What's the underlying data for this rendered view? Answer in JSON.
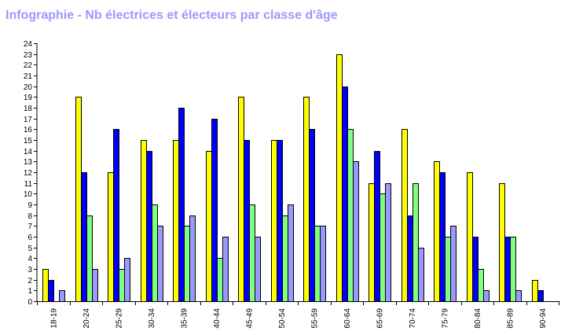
{
  "title": "Infographie - Nb électrices et électeurs par classe d'âge",
  "chart_data": {
    "type": "bar",
    "title": "Infographie - Nb électrices et électeurs par classe d'âge",
    "xlabel": "",
    "ylabel": "",
    "ylim": [
      0,
      24
    ],
    "yticks": [
      "0",
      "1",
      "2",
      "3",
      "4",
      "5",
      "6",
      "7",
      "8",
      "9",
      "10",
      "11",
      "12",
      "13",
      "14",
      "15",
      "16",
      "17",
      "18",
      "19",
      "20",
      "21",
      "22",
      "23",
      "24"
    ],
    "grid": false,
    "legend": "none",
    "categories": [
      "18-19",
      "20-24",
      "25-29",
      "30-34",
      "35-39",
      "40-44",
      "45-49",
      "50-54",
      "55-59",
      "60-64",
      "65-69",
      "70-74",
      "75-79",
      "80-84",
      "85-89",
      "90-94"
    ],
    "series": [
      {
        "color": "#ffff00",
        "values": [
          3,
          19,
          12,
          15,
          15,
          14,
          19,
          15,
          19,
          23,
          11,
          16,
          13,
          12,
          11,
          2
        ]
      },
      {
        "color": "#0000ff",
        "values": [
          2,
          12,
          16,
          14,
          18,
          17,
          15,
          15,
          16,
          20,
          14,
          8,
          12,
          6,
          6,
          1
        ]
      },
      {
        "color": "#80ff80",
        "values": [
          0,
          8,
          3,
          9,
          7,
          4,
          9,
          8,
          7,
          16,
          10,
          11,
          6,
          3,
          6,
          0
        ]
      },
      {
        "color": "#9999ff",
        "values": [
          1,
          3,
          4,
          7,
          8,
          6,
          6,
          9,
          7,
          13,
          11,
          5,
          7,
          1,
          1,
          0
        ]
      }
    ]
  }
}
